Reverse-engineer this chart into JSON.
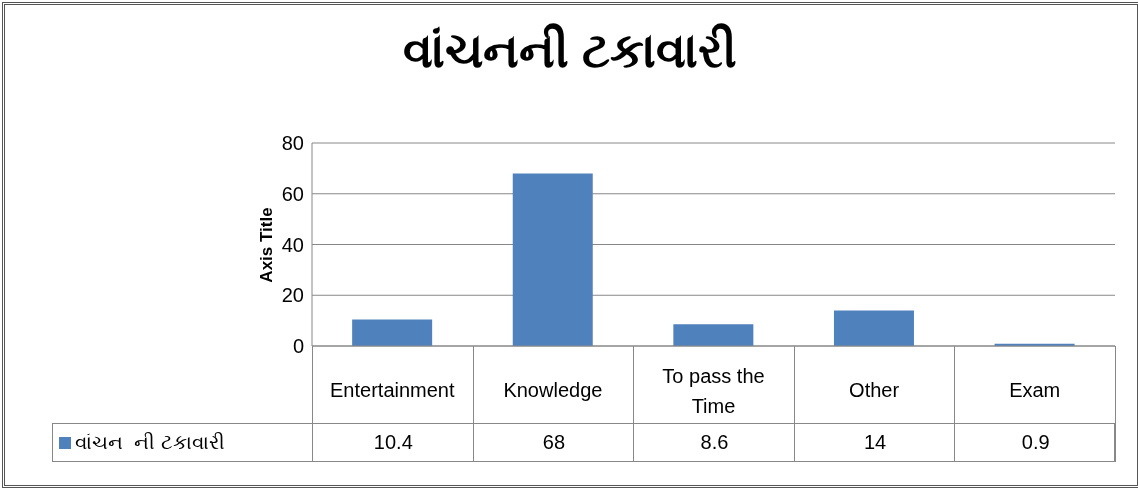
{
  "chart_data": {
    "type": "bar",
    "title": "વાંચનની ટકાવારી",
    "ylabel": "Axis Title",
    "categories": [
      "Entertainment",
      "Knowledge",
      "To pass the Time",
      "Other",
      "Exam"
    ],
    "series": [
      {
        "name": "વાંચન  ની ટકાવારી",
        "color": "#4f81bd",
        "values": [
          10.4,
          68,
          8.6,
          14,
          0.9
        ]
      }
    ],
    "ylim": [
      0,
      80
    ],
    "yticks": [
      0,
      20,
      40,
      60,
      80
    ],
    "grid": "y",
    "data_labels": true
  }
}
